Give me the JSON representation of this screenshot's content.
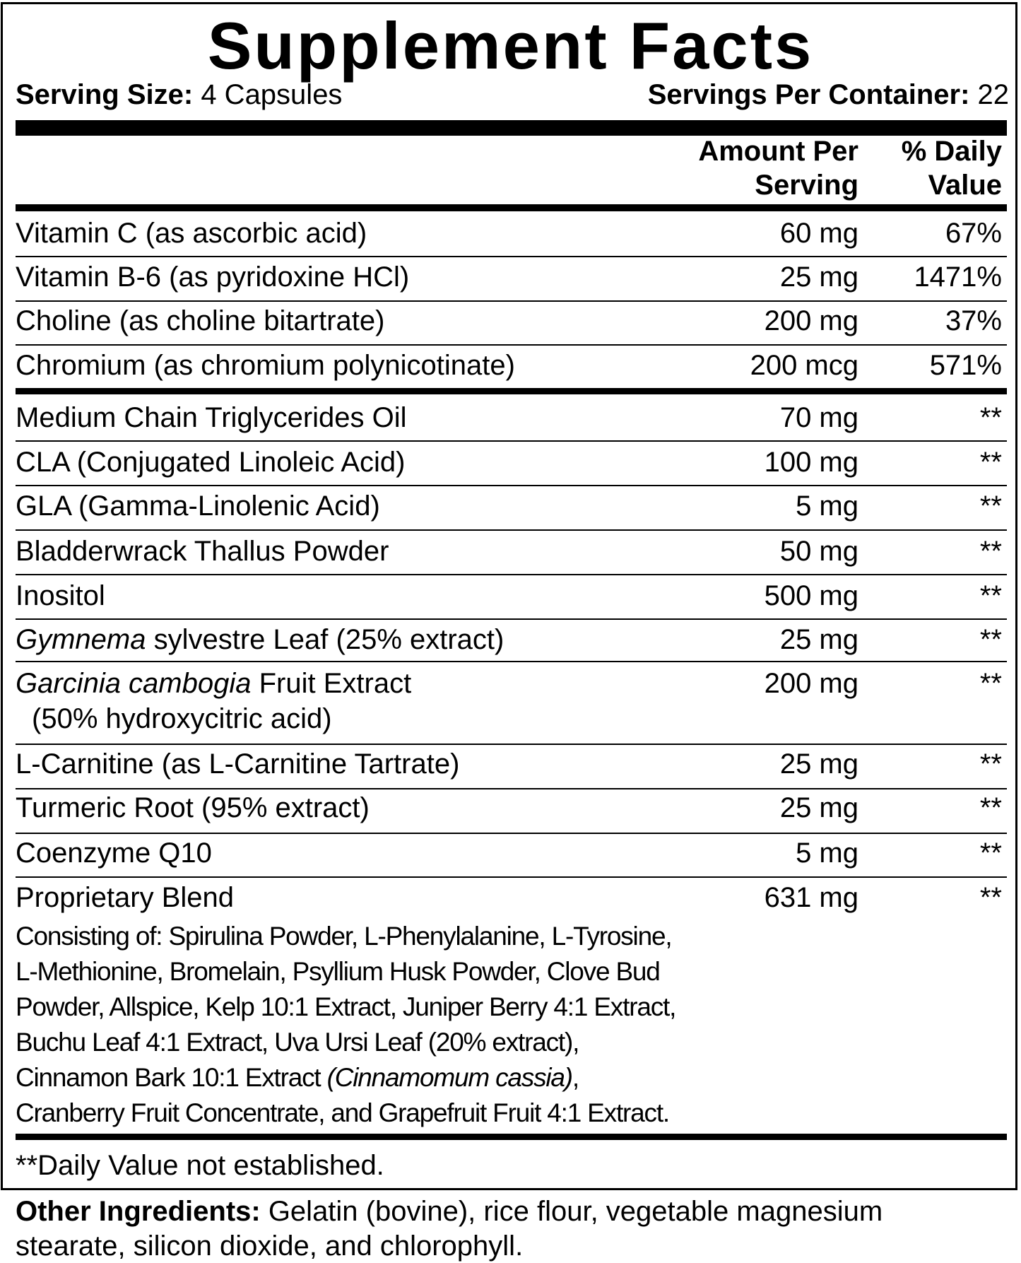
{
  "title": "Supplement Facts",
  "serving_size": {
    "label": "Serving Size:",
    "value": " 4 Capsules"
  },
  "servings_per_container": {
    "label": "Servings Per Container:",
    "value": " 22"
  },
  "columns": {
    "amount": [
      "Amount Per",
      "Serving"
    ],
    "daily_value": [
      "% Daily",
      "Value"
    ]
  },
  "vitamins": [
    {
      "name": [
        {
          "text": "Vitamin C (as ascorbic acid)"
        }
      ],
      "amount": "60 mg",
      "dv": "67%"
    },
    {
      "name": [
        {
          "text": "Vitamin B-6 (as pyridoxine HCl)"
        }
      ],
      "amount": "25 mg",
      "dv": "1471%"
    },
    {
      "name": [
        {
          "text": "Choline (as choline bitartrate)"
        }
      ],
      "amount": "200 mg",
      "dv": "37%"
    },
    {
      "name": [
        {
          "text": "Chromium (as chromium polynicotinate)"
        }
      ],
      "amount": "200 mcg",
      "dv": "571%"
    }
  ],
  "ingredients": [
    {
      "name": [
        {
          "text": "Medium Chain Triglycerides Oil"
        }
      ],
      "amount": "70 mg",
      "dv": "**"
    },
    {
      "name": [
        {
          "text": "CLA (Conjugated Linoleic Acid)"
        }
      ],
      "amount": "100 mg",
      "dv": "**"
    },
    {
      "name": [
        {
          "text": "GLA (Gamma-Linolenic Acid)"
        }
      ],
      "amount": "5 mg",
      "dv": "**"
    },
    {
      "name": [
        {
          "text": "Bladderwrack Thallus Powder"
        }
      ],
      "amount": "50 mg",
      "dv": "**"
    },
    {
      "name": [
        {
          "text": "Inositol"
        }
      ],
      "amount": "500 mg",
      "dv": "**"
    },
    {
      "name": [
        {
          "text": "Gymnema",
          "italic": true
        },
        {
          "text": " sylvestre Leaf (25% extract)"
        }
      ],
      "amount": "25 mg",
      "dv": "**"
    },
    {
      "name": [
        {
          "text": "Garcinia cambogia",
          "italic": true
        },
        {
          "text": " Fruit Extract"
        }
      ],
      "name_line2": "(50% hydroxycitric acid)",
      "amount": "200 mg",
      "dv": "**"
    },
    {
      "name": [
        {
          "text": "L-Carnitine (as L-Carnitine Tartrate)"
        }
      ],
      "amount": "25 mg",
      "dv": "**"
    },
    {
      "name": [
        {
          "text": "Turmeric Root (95% extract)"
        }
      ],
      "amount": "25 mg",
      "dv": "**"
    },
    {
      "name": [
        {
          "text": "Coenzyme Q10"
        }
      ],
      "amount": "5 mg",
      "dv": "**"
    },
    {
      "name": [
        {
          "text": "Proprietary Blend"
        }
      ],
      "amount": "631 mg",
      "dv": "**"
    }
  ],
  "blend_lines": [
    [
      {
        "text": "Consisting of: Spirulina Powder, L-Phenylalanine, L-Tyrosine,"
      }
    ],
    [
      {
        "text": "L-Methionine, Bromelain, Psyllium Husk Powder, Clove Bud"
      }
    ],
    [
      {
        "text": "Powder, Allspice, Kelp 10:1 Extract, Juniper Berry 4:1 Extract,"
      }
    ],
    [
      {
        "text": "Buchu Leaf 4:1 Extract, Uva Ursi Leaf (20% extract),"
      }
    ],
    [
      {
        "text": "Cinnamon Bark 10:1 Extract "
      },
      {
        "text": "(Cinnamomum cassia)",
        "italic": true
      },
      {
        "text": ","
      }
    ],
    [
      {
        "text": "Cranberry Fruit Concentrate, and Grapefruit Fruit 4:1 Extract."
      }
    ]
  ],
  "footnote": "**Daily Value not established.",
  "other_ingredients": {
    "label": "Other Ingredients:",
    "lines": [
      " Gelatin (bovine), rice flour, vegetable magnesium",
      "stearate, silicon dioxide, and chlorophyll."
    ]
  }
}
